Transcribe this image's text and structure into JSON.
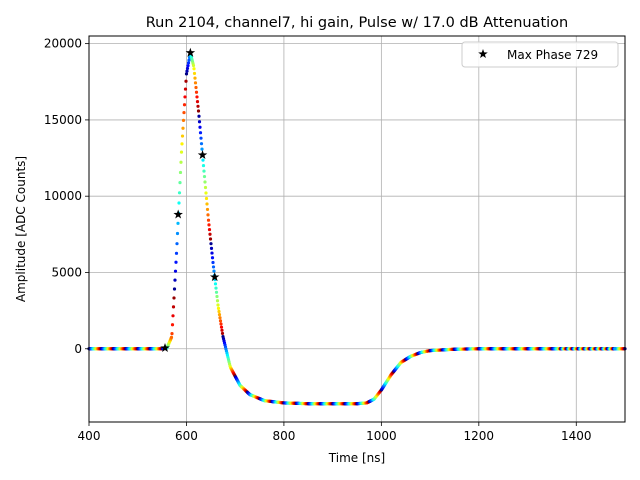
{
  "chart_data": {
    "type": "scatter",
    "title": "Run 2104, channel7, hi gain, Pulse w/ 17.0 dB Attenuation",
    "xlabel": "Time [ns]",
    "ylabel": "Amplitude [ADC Counts]",
    "xlim": [
      400,
      1500
    ],
    "ylim": [
      -4800,
      20500
    ],
    "x_ticks": [
      400,
      600,
      800,
      1000,
      1200,
      1400
    ],
    "y_ticks": [
      0,
      5000,
      10000,
      15000,
      20000
    ],
    "grid": true,
    "legend_position": "top-right",
    "colormap": "jet",
    "waveform_points": [
      [
        400,
        0
      ],
      [
        550,
        0
      ],
      [
        560,
        50
      ],
      [
        570,
        800
      ],
      [
        580,
        6500
      ],
      [
        590,
        13000
      ],
      [
        600,
        18000
      ],
      [
        608,
        19400
      ],
      [
        615,
        18500
      ],
      [
        625,
        15500
      ],
      [
        635,
        12000
      ],
      [
        645,
        8500
      ],
      [
        655,
        5500
      ],
      [
        665,
        2800
      ],
      [
        675,
        800
      ],
      [
        690,
        -1200
      ],
      [
        710,
        -2400
      ],
      [
        730,
        -3000
      ],
      [
        760,
        -3400
      ],
      [
        800,
        -3550
      ],
      [
        850,
        -3600
      ],
      [
        900,
        -3600
      ],
      [
        950,
        -3600
      ],
      [
        970,
        -3550
      ],
      [
        985,
        -3300
      ],
      [
        1000,
        -2700
      ],
      [
        1020,
        -1700
      ],
      [
        1040,
        -900
      ],
      [
        1060,
        -500
      ],
      [
        1080,
        -250
      ],
      [
        1100,
        -120
      ],
      [
        1150,
        -30
      ],
      [
        1200,
        0
      ],
      [
        1500,
        0
      ]
    ],
    "series": [
      {
        "name": "Max Phase 729",
        "marker": "star",
        "color": "#000000",
        "x": [
          556,
          583,
          608,
          633,
          658
        ],
        "y": [
          50,
          8800,
          19400,
          12700,
          4700
        ]
      }
    ]
  }
}
